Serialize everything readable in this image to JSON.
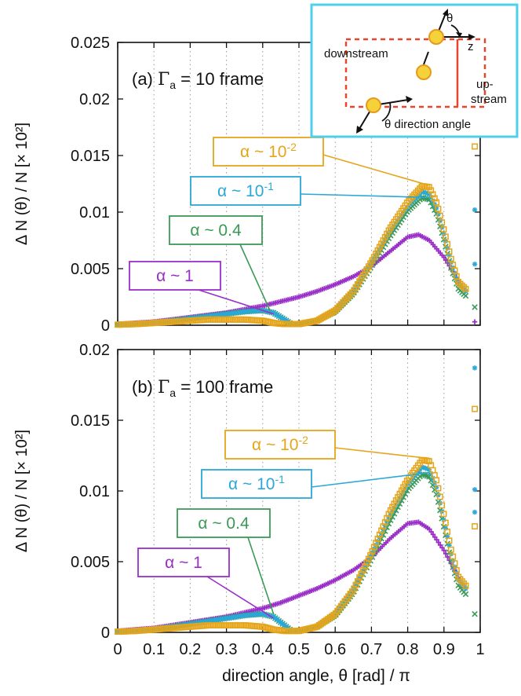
{
  "chart_data": {
    "type": "scatter",
    "xlabel": "direction angle, θ [rad] / π",
    "ylabel": "Δ N (θ) / N [× 10²]",
    "xlim": [
      0,
      1
    ],
    "xticks": [
      "0",
      "0.1",
      "0.2",
      "0.3",
      "0.4",
      "0.5",
      "0.6",
      "0.7",
      "0.8",
      "0.9",
      "1"
    ],
    "xtick_values": [
      0,
      0.1,
      0.2,
      0.3,
      0.4,
      0.5,
      0.6,
      0.7,
      0.8,
      0.9,
      1
    ],
    "colors": {
      "alpha1": "#9a2fc8",
      "alpha04": "#3a9a55",
      "alpha01": "#2aa8d8",
      "alpha001": "#e6a519"
    },
    "panels": [
      {
        "title_pre": "(a) ",
        "title_sym": "Γ",
        "title_sub": "a",
        "title_post": " = 10 frame",
        "ylim": [
          0,
          0.025
        ],
        "yticks": [
          "0",
          "0.005",
          "0.01",
          "0.015",
          "0.02",
          "0.025"
        ],
        "ytick_values": [
          0,
          0.005,
          0.01,
          0.015,
          0.02,
          0.025
        ],
        "labels": [
          {
            "base": "α ~ 10",
            "exp": "-2",
            "color": "#e6a519",
            "series": "alpha001"
          },
          {
            "base": "α ~ 10",
            "exp": "-1",
            "color": "#2aa8d8",
            "series": "alpha01"
          },
          {
            "base": "α ~ 0.4",
            "exp": "",
            "color": "#3a9a55",
            "series": "alpha04"
          },
          {
            "base": "α ~ 1",
            "exp": "",
            "color": "#9a2fc8",
            "series": "alpha1"
          }
        ],
        "series": [
          {
            "name": "α ~ 1",
            "key": "alpha1",
            "x": [
              0,
              0.05,
              0.1,
              0.15,
              0.2,
              0.25,
              0.3,
              0.35,
              0.4,
              0.45,
              0.5,
              0.55,
              0.6,
              0.65,
              0.7,
              0.75,
              0.8,
              0.83,
              0.86,
              0.9,
              0.93,
              0.95
            ],
            "y": [
              0.0001,
              0.0002,
              0.0003,
              0.0005,
              0.0007,
              0.0009,
              0.0011,
              0.0014,
              0.0017,
              0.0021,
              0.0025,
              0.003,
              0.0036,
              0.0043,
              0.0052,
              0.0065,
              0.0078,
              0.008,
              0.0075,
              0.006,
              0.0045,
              0.0033
            ]
          },
          {
            "name": "α ~ 0.4",
            "key": "alpha04",
            "x": [
              0,
              0.05,
              0.1,
              0.15,
              0.2,
              0.25,
              0.3,
              0.35,
              0.4,
              0.43,
              0.46,
              0.48,
              0.5,
              0.55,
              0.6,
              0.65,
              0.7,
              0.75,
              0.8,
              0.84,
              0.86,
              0.88,
              0.9,
              0.92,
              0.94,
              0.96
            ],
            "y": [
              5e-05,
              0.0001,
              0.0002,
              0.0004,
              0.0006,
              0.0008,
              0.001,
              0.0012,
              0.0013,
              0.0011,
              0.0005,
              0.0001,
              0.0001,
              0.0004,
              0.0012,
              0.0028,
              0.0052,
              0.0078,
              0.0101,
              0.0113,
              0.0111,
              0.0098,
              0.0075,
              0.005,
              0.0032,
              0.0026
            ]
          },
          {
            "name": "α ~ 10⁻¹",
            "key": "alpha01",
            "x": [
              0,
              0.05,
              0.1,
              0.15,
              0.2,
              0.25,
              0.3,
              0.35,
              0.4,
              0.43,
              0.46,
              0.48,
              0.5,
              0.55,
              0.6,
              0.65,
              0.7,
              0.75,
              0.8,
              0.84,
              0.86,
              0.88,
              0.9,
              0.92,
              0.94,
              0.96
            ],
            "y": [
              5e-05,
              0.0001,
              0.0002,
              0.0004,
              0.0006,
              0.0008,
              0.001,
              0.0012,
              0.0013,
              0.0011,
              0.0005,
              0.0001,
              0.0001,
              0.0004,
              0.0013,
              0.003,
              0.0055,
              0.0082,
              0.0105,
              0.0118,
              0.0116,
              0.0103,
              0.008,
              0.0055,
              0.0036,
              0.003
            ]
          },
          {
            "name": "α ~ 10⁻²",
            "key": "alpha001",
            "x": [
              0,
              0.05,
              0.1,
              0.15,
              0.2,
              0.25,
              0.3,
              0.35,
              0.4,
              0.43,
              0.46,
              0.48,
              0.5,
              0.55,
              0.6,
              0.65,
              0.7,
              0.75,
              0.8,
              0.84,
              0.86,
              0.88,
              0.9,
              0.92,
              0.94,
              0.96
            ],
            "y": [
              5e-05,
              0.0001,
              0.0002,
              0.0003,
              0.0004,
              0.0005,
              0.0005,
              0.0005,
              0.0004,
              0.0002,
              0.0001,
              0.0001,
              0.0001,
              0.0004,
              0.0013,
              0.003,
              0.0056,
              0.0085,
              0.0109,
              0.0123,
              0.0122,
              0.0108,
              0.0084,
              0.0058,
              0.0038,
              0.0032
            ]
          }
        ],
        "edge_points": [
          {
            "key": "alpha001",
            "x": 0.985,
            "y": 0.0158
          },
          {
            "key": "alpha01",
            "x": 0.985,
            "y": 0.0102
          },
          {
            "key": "alpha01",
            "x": 0.985,
            "y": 0.0054
          },
          {
            "key": "alpha04",
            "x": 0.985,
            "y": 0.0016
          },
          {
            "key": "alpha1",
            "x": 0.985,
            "y": 0.0003
          }
        ]
      },
      {
        "title_pre": "(b) ",
        "title_sym": "Γ",
        "title_sub": "a",
        "title_post": " = 100 frame",
        "ylim": [
          0,
          0.02
        ],
        "yticks": [
          "0",
          "0.005",
          "0.01",
          "0.015",
          "0.02"
        ],
        "ytick_values": [
          0,
          0.005,
          0.01,
          0.015,
          0.02
        ],
        "labels": [
          {
            "base": "α ~ 10",
            "exp": "-2",
            "color": "#e6a519",
            "series": "alpha001"
          },
          {
            "base": "α ~ 10",
            "exp": "-1",
            "color": "#2aa8d8",
            "series": "alpha01"
          },
          {
            "base": "α ~ 0.4",
            "exp": "",
            "color": "#3a9a55",
            "series": "alpha04"
          },
          {
            "base": "α ~ 1",
            "exp": "",
            "color": "#9a2fc8",
            "series": "alpha1"
          }
        ],
        "series": [
          {
            "name": "α ~ 1",
            "key": "alpha1",
            "x": [
              0,
              0.05,
              0.1,
              0.15,
              0.2,
              0.25,
              0.3,
              0.35,
              0.4,
              0.45,
              0.5,
              0.55,
              0.6,
              0.65,
              0.7,
              0.75,
              0.8,
              0.83,
              0.86,
              0.9,
              0.93,
              0.95
            ],
            "y": [
              0.0001,
              0.0002,
              0.0003,
              0.0005,
              0.0007,
              0.0009,
              0.0011,
              0.0014,
              0.0017,
              0.0021,
              0.0026,
              0.0031,
              0.0037,
              0.0044,
              0.0053,
              0.0066,
              0.0077,
              0.0078,
              0.0073,
              0.0058,
              0.0044,
              0.0033
            ]
          },
          {
            "name": "α ~ 0.4",
            "key": "alpha04",
            "x": [
              0,
              0.05,
              0.1,
              0.15,
              0.2,
              0.25,
              0.3,
              0.35,
              0.4,
              0.43,
              0.46,
              0.48,
              0.5,
              0.55,
              0.6,
              0.65,
              0.7,
              0.75,
              0.8,
              0.84,
              0.86,
              0.88,
              0.9,
              0.92,
              0.94,
              0.96
            ],
            "y": [
              5e-05,
              0.0001,
              0.0002,
              0.0004,
              0.0006,
              0.0008,
              0.001,
              0.0012,
              0.0013,
              0.0011,
              0.0005,
              0.0001,
              0.0001,
              0.0004,
              0.0012,
              0.0028,
              0.0052,
              0.0078,
              0.0101,
              0.0112,
              0.011,
              0.0097,
              0.0074,
              0.005,
              0.0033,
              0.0027
            ]
          },
          {
            "name": "α ~ 10⁻¹",
            "key": "alpha01",
            "x": [
              0,
              0.05,
              0.1,
              0.15,
              0.2,
              0.25,
              0.3,
              0.35,
              0.4,
              0.43,
              0.46,
              0.48,
              0.5,
              0.55,
              0.6,
              0.65,
              0.7,
              0.75,
              0.8,
              0.84,
              0.86,
              0.88,
              0.9,
              0.92,
              0.94,
              0.96
            ],
            "y": [
              5e-05,
              0.0001,
              0.0002,
              0.0004,
              0.0006,
              0.0008,
              0.001,
              0.0012,
              0.0013,
              0.0011,
              0.0005,
              0.0001,
              0.0001,
              0.0004,
              0.0013,
              0.003,
              0.0055,
              0.0082,
              0.0105,
              0.0117,
              0.0115,
              0.0102,
              0.0079,
              0.0055,
              0.0037,
              0.0031
            ]
          },
          {
            "name": "α ~ 10⁻²",
            "key": "alpha001",
            "x": [
              0,
              0.05,
              0.1,
              0.15,
              0.2,
              0.25,
              0.3,
              0.35,
              0.4,
              0.43,
              0.46,
              0.48,
              0.5,
              0.55,
              0.6,
              0.65,
              0.7,
              0.75,
              0.8,
              0.84,
              0.86,
              0.88,
              0.9,
              0.92,
              0.94,
              0.96
            ],
            "y": [
              5e-05,
              0.0001,
              0.0002,
              0.0003,
              0.0004,
              0.0005,
              0.0005,
              0.0005,
              0.0004,
              0.0002,
              0.0001,
              0.0001,
              0.0001,
              0.0004,
              0.0013,
              0.003,
              0.0056,
              0.0085,
              0.0108,
              0.0122,
              0.0121,
              0.0107,
              0.0083,
              0.0058,
              0.0039,
              0.0033
            ]
          }
        ],
        "edge_points": [
          {
            "key": "alpha01",
            "x": 0.985,
            "y": 0.0187
          },
          {
            "key": "alpha001",
            "x": 0.985,
            "y": 0.0158
          },
          {
            "key": "alpha01",
            "x": 0.985,
            "y": 0.0101
          },
          {
            "key": "alpha01",
            "x": 0.985,
            "y": 0.0085
          },
          {
            "key": "alpha001",
            "x": 0.985,
            "y": 0.0075
          },
          {
            "key": "alpha04",
            "x": 0.985,
            "y": 0.0013
          }
        ]
      }
    ]
  },
  "inset": {
    "downstream": "downstream",
    "upstream_1": "up-",
    "upstream_2": "stream",
    "z_label": "z",
    "theta_label": "θ",
    "direction_angle": "θ  direction angle",
    "border_color": "#4fd0ea",
    "frame_color": "#e8452c"
  }
}
